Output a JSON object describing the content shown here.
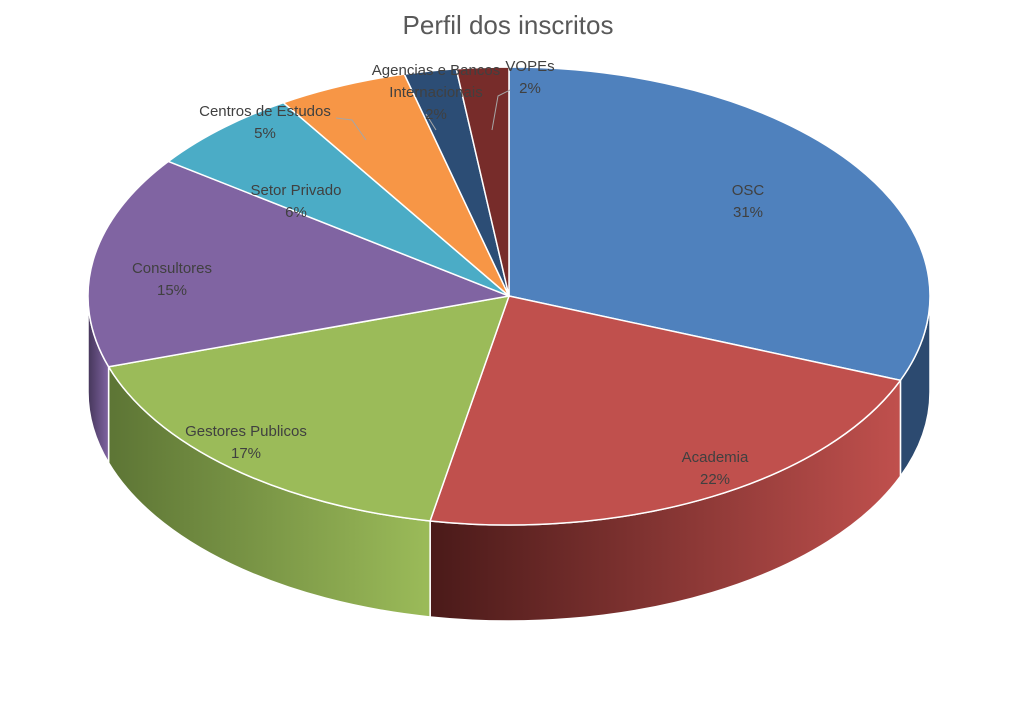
{
  "chart_data": {
    "type": "pie",
    "title": "Perfil dos inscritos",
    "style": "3d",
    "grid": false,
    "legend": "none",
    "slices": [
      {
        "label": [
          "OSC"
        ],
        "value": 31,
        "value_label": "31%",
        "color": "#4F81BD",
        "side_dark": "#2c4a70"
      },
      {
        "label": [
          "Academia"
        ],
        "value": 22,
        "value_label": "22%",
        "color": "#C0504D",
        "side_dark": "#4a1a19"
      },
      {
        "label": [
          "Gestores Publicos"
        ],
        "value": 17,
        "value_label": "17%",
        "color": "#9BBB59",
        "side_dark": "#5d7535"
      },
      {
        "label": [
          "Consultores"
        ],
        "value": 15,
        "value_label": "15%",
        "color": "#8064A2",
        "side_dark": "#45365a"
      },
      {
        "label": [
          "Setor Privado"
        ],
        "value": 6,
        "value_label": "6%",
        "color": "#4BACC6",
        "side_dark": "#2b6575"
      },
      {
        "label": [
          "Centros de Estudos"
        ],
        "value": 5,
        "value_label": "5%",
        "color": "#F79646",
        "side_dark": "#8f5524"
      },
      {
        "label": [
          "Agencias e Bancos",
          "Internacionais"
        ],
        "value": 2,
        "value_label": "2%",
        "color": "#2C4D75",
        "side_dark": "#1a2d45"
      },
      {
        "label": [
          "VOPEs"
        ],
        "value": 2,
        "value_label": "2%",
        "color": "#772C2A",
        "side_dark": "#401716"
      }
    ]
  }
}
